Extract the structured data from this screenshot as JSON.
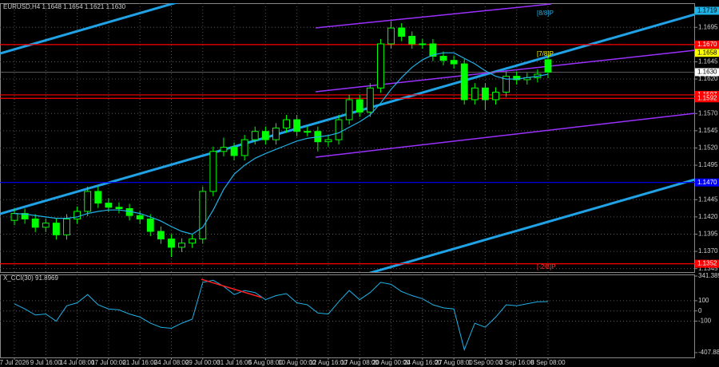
{
  "header": {
    "symbol": "EURUSD,H4",
    "ohlc_labels": [
      "1.1648",
      "1.1654",
      "1.1621",
      "1.1630"
    ]
  },
  "chart_data": {
    "type": "candlestick",
    "categories": [
      "7 Jul 2026",
      null,
      null,
      "9 Jul 16:00",
      null,
      null,
      "14 Jul 08:00",
      null,
      null,
      "17 Jul 00:00",
      null,
      null,
      "21 Jul 16:00",
      null,
      null,
      "24 Jul 08:00",
      null,
      null,
      "29 Jul 00:00",
      null,
      null,
      "31 Jul 16:00",
      null,
      null,
      "5 Aug 08:00",
      null,
      null,
      "10 Aug 00:00",
      null,
      null,
      "12 Aug 16:00",
      null,
      null,
      "17 Aug 08:00",
      null,
      null,
      "20 Aug 00:00",
      null,
      null,
      "24 Aug 16:00",
      null,
      null,
      "27 Aug 08:00",
      null,
      null,
      "1 Sep 00:00",
      null,
      null,
      "3 Sep 16:00",
      null,
      null,
      "8 Sep 08:00"
    ],
    "open": [
      1.1415,
      1.1425,
      1.1417,
      1.1405,
      1.1411,
      1.1394,
      1.1417,
      1.1428,
      1.1457,
      1.144,
      1.1434,
      1.1432,
      1.1422,
      1.1417,
      1.1399,
      1.1388,
      1.1376,
      1.1382,
      1.1388,
      1.1457,
      1.1515,
      1.1521,
      1.1509,
      1.1532,
      1.1544,
      1.1532,
      1.1549,
      1.1561,
      1.1544,
      1.1544,
      1.1529,
      1.1532,
      1.1561,
      1.159,
      1.1572,
      1.1607,
      1.1671,
      1.1694,
      1.1682,
      1.1671,
      1.1671,
      1.1653,
      1.1647,
      1.1642,
      1.159,
      1.1607,
      1.159,
      1.1601,
      1.1624,
      1.1619,
      1.1622,
      1.1648
    ],
    "high": [
      1.1432,
      1.1432,
      1.1424,
      1.1418,
      1.1418,
      1.1424,
      1.1435,
      1.1464,
      1.1464,
      1.1447,
      1.1441,
      1.1439,
      1.1429,
      1.1424,
      1.1406,
      1.1395,
      1.1389,
      1.1395,
      1.1464,
      1.1522,
      1.1535,
      1.1528,
      1.1539,
      1.1551,
      1.1551,
      1.1556,
      1.1568,
      1.1568,
      1.1551,
      1.1551,
      1.1539,
      1.1568,
      1.1597,
      1.1597,
      1.1614,
      1.1678,
      1.1704,
      1.1701,
      1.1689,
      1.1678,
      1.1678,
      1.166,
      1.1654,
      1.1649,
      1.1614,
      1.1614,
      1.1608,
      1.1631,
      1.1631,
      1.1629,
      1.1634,
      1.1654
    ],
    "low": [
      1.1408,
      1.141,
      1.1398,
      1.1398,
      1.1387,
      1.1387,
      1.141,
      1.1421,
      1.1433,
      1.1427,
      1.1425,
      1.1415,
      1.141,
      1.1392,
      1.1381,
      1.1362,
      1.1369,
      1.1375,
      1.1381,
      1.145,
      1.1508,
      1.1502,
      1.1502,
      1.1525,
      1.1525,
      1.1525,
      1.1542,
      1.1537,
      1.1537,
      1.1515,
      1.1522,
      1.1525,
      1.1554,
      1.1565,
      1.1565,
      1.16,
      1.1664,
      1.1675,
      1.1664,
      1.1664,
      1.1646,
      1.164,
      1.1635,
      1.1583,
      1.1583,
      1.1575,
      1.1583,
      1.1594,
      1.1612,
      1.1612,
      1.1615,
      1.1621
    ],
    "close": [
      1.1425,
      1.1417,
      1.1405,
      1.1411,
      1.1394,
      1.1417,
      1.1428,
      1.1457,
      1.144,
      1.1434,
      1.1432,
      1.1422,
      1.1417,
      1.1399,
      1.1388,
      1.1376,
      1.1382,
      1.1388,
      1.1457,
      1.1515,
      1.1521,
      1.1509,
      1.1532,
      1.1544,
      1.1532,
      1.1549,
      1.1561,
      1.1544,
      1.1544,
      1.1529,
      1.1532,
      1.1561,
      1.159,
      1.1572,
      1.1607,
      1.1671,
      1.1694,
      1.1682,
      1.1671,
      1.1671,
      1.1653,
      1.1647,
      1.1642,
      1.159,
      1.1607,
      1.159,
      1.1601,
      1.1624,
      1.1619,
      1.1622,
      1.1627,
      1.163
    ],
    "ma": [
      1.1425,
      1.1424,
      1.1422,
      1.142,
      1.1418,
      1.1418,
      1.142,
      1.1425,
      1.1428,
      1.143,
      1.143,
      1.1428,
      1.1425,
      1.142,
      1.1414,
      1.1406,
      1.1399,
      1.1395,
      1.1405,
      1.143,
      1.146,
      1.1482,
      1.1495,
      1.1505,
      1.1512,
      1.1518,
      1.1524,
      1.153,
      1.1534,
      1.1536,
      1.1538,
      1.1542,
      1.155,
      1.1558,
      1.1568,
      1.1585,
      1.1605,
      1.1622,
      1.1637,
      1.1648,
      1.1655,
      1.1658,
      1.1658,
      1.165,
      1.1642,
      1.1632,
      1.1624,
      1.162,
      1.162,
      1.1622,
      1.1624,
      1.1627
    ],
    "up_color": "#000000",
    "down_color": "#00ff00",
    "outline_color": "#00ff00",
    "ma_color": "#1fb2e6",
    "ylim": [
      1.134,
      1.173
    ],
    "yticks": [
      {
        "value": 1.1345,
        "label": "1.1345"
      },
      {
        "value": 1.137,
        "label": "1.1370"
      },
      {
        "value": 1.1395,
        "label": "1.1395"
      },
      {
        "value": 1.142,
        "label": "1.1420"
      },
      {
        "value": 1.1445,
        "label": "1.1445"
      },
      {
        "value": 1.1495,
        "label": "1.1495"
      },
      {
        "value": 1.152,
        "label": "1.1520"
      },
      {
        "value": 1.1545,
        "label": "1.1545"
      },
      {
        "value": 1.157,
        "label": "1.1570"
      },
      {
        "value": 1.162,
        "label": "1.1620"
      },
      {
        "value": 1.1645,
        "label": "1.1645"
      },
      {
        "value": 1.1695,
        "label": "1.1695"
      }
    ],
    "grid": true,
    "levels": [
      {
        "value": 1.167,
        "label": "1.1670",
        "color": "#ff0000"
      },
      {
        "value": 1.1597,
        "label": "1.1597",
        "color": "#ff0000"
      },
      {
        "value": 1.1592,
        "label": "1.1592",
        "color": "#ff0000"
      },
      {
        "value": 1.147,
        "label": "1.1470",
        "color": "#0000ff"
      },
      {
        "value": 1.1352,
        "label": "1.1352",
        "color": "#ff0000"
      }
    ],
    "markers": [
      {
        "value": 1.1719,
        "label": "1.1719",
        "color": "#1fb2e6"
      },
      {
        "value": 1.1658,
        "label": "1.1658",
        "color": "#ffff00"
      },
      {
        "value": 1.163,
        "label": "1.1630",
        "color": "#ffffff"
      }
    ],
    "annotations": [
      "[8/8]P",
      "[7/8]P",
      "[-2/8]P"
    ],
    "indicator": {
      "type": "line",
      "name": "X_CCI(30)",
      "color": "#1fb2e6",
      "values": [
        70,
        20,
        -40,
        -30,
        -100,
        50,
        80,
        160,
        60,
        20,
        10,
        -30,
        -60,
        -120,
        -160,
        -170,
        -120,
        -80,
        280,
        300,
        240,
        160,
        200,
        180,
        110,
        150,
        170,
        80,
        60,
        -20,
        -30,
        90,
        200,
        110,
        180,
        280,
        260,
        190,
        150,
        120,
        60,
        30,
        20,
        -380,
        -120,
        -160,
        -60,
        60,
        50,
        70,
        90,
        91.8969
      ],
      "ylim": [
        -455,
        357
      ],
      "yticks": [
        341.3899,
        100,
        0,
        -100,
        -407.8883
      ]
    }
  }
}
